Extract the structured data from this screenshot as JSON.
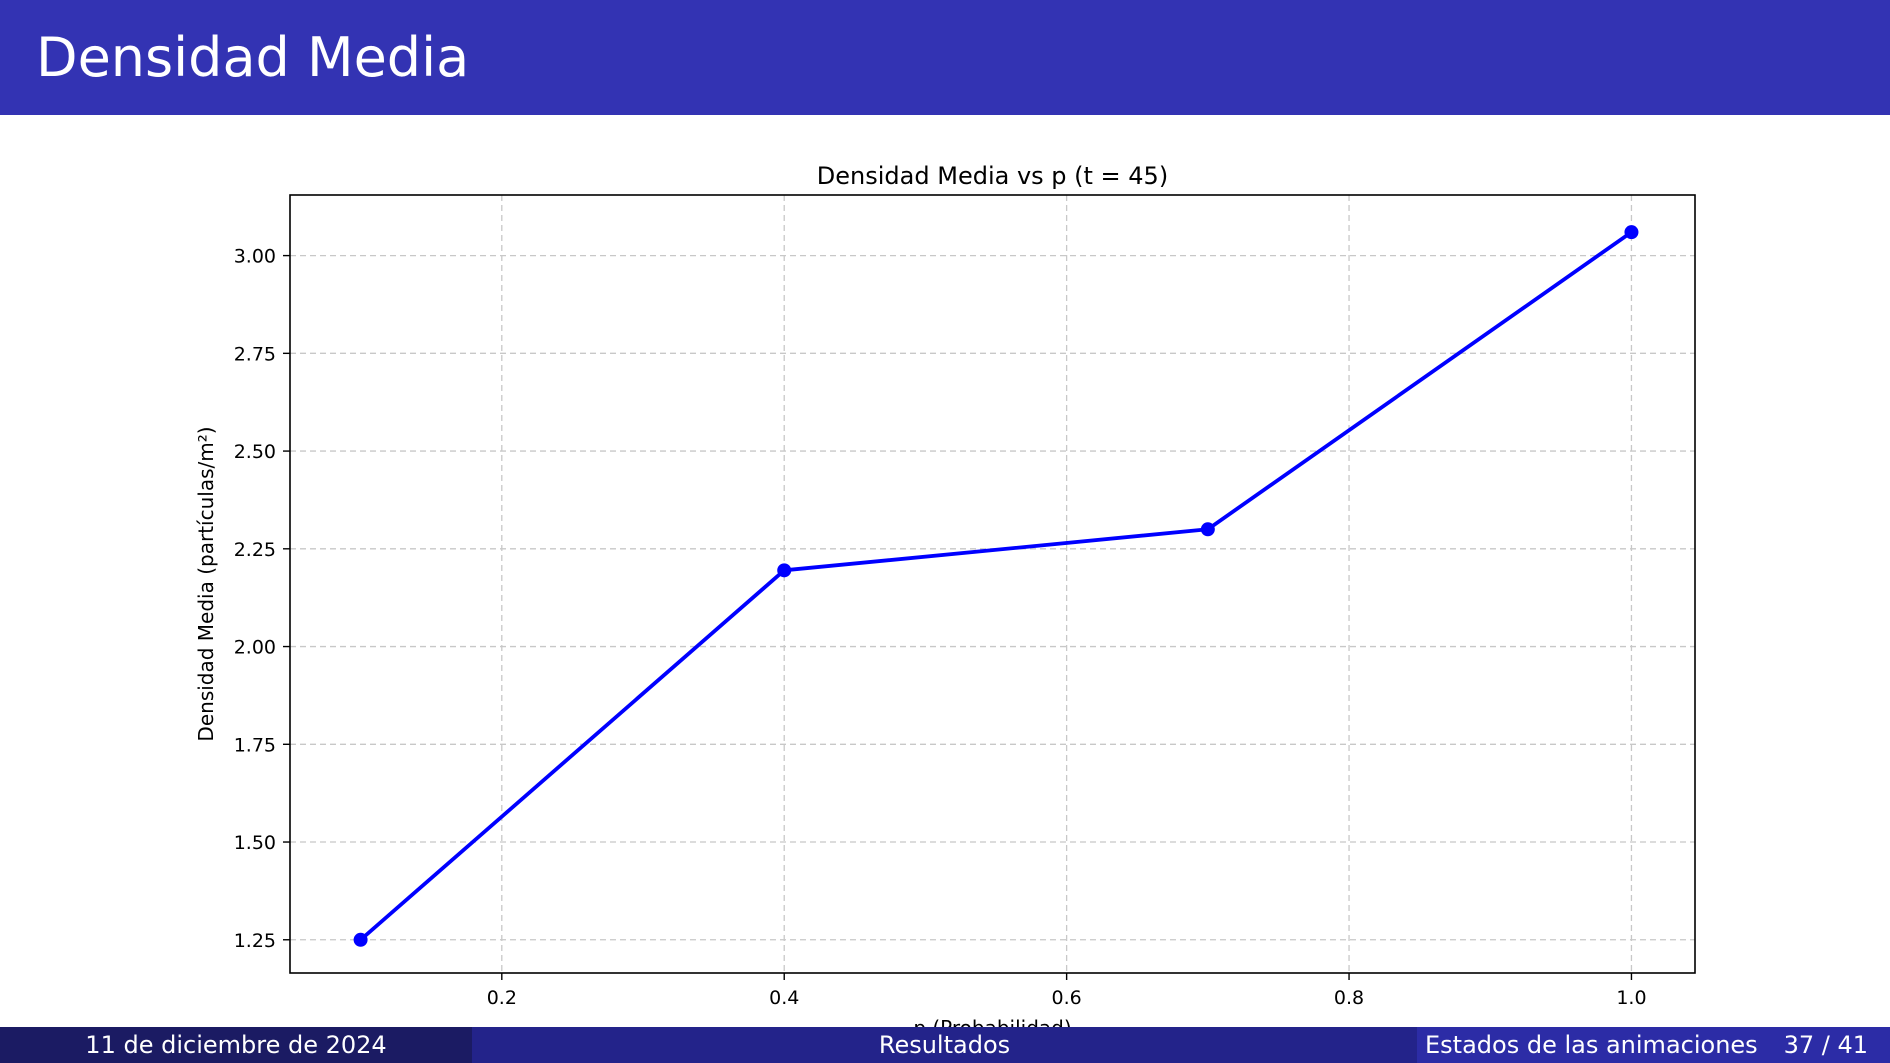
{
  "slide": {
    "title": "Densidad Media"
  },
  "footer": {
    "date": "11 de diciembre de 2024",
    "section": "Resultados",
    "subsection": "Estados de las animaciones",
    "page": "37 / 41"
  },
  "colors": {
    "header_bg": "#3333b3",
    "line": "#0000ff",
    "grid": "#c8c8c8"
  },
  "chart_data": {
    "type": "line",
    "title": "Densidad Media vs p (t = 45)",
    "xlabel": "p (Probabilidad)",
    "ylabel": "Densidad Media (partículas/m²)",
    "x": [
      0.1,
      0.4,
      0.7,
      1.0
    ],
    "series": [
      {
        "values": [
          1.25,
          2.195,
          2.3,
          3.06
        ]
      }
    ],
    "xlim": [
      0.05,
      1.045
    ],
    "ylim": [
      1.165,
      3.155
    ],
    "xticks": [
      "0.2",
      "0.4",
      "0.6",
      "0.8",
      "1.0"
    ],
    "yticks": [
      "1.25",
      "1.50",
      "1.75",
      "2.00",
      "2.25",
      "2.50",
      "2.75",
      "3.00"
    ],
    "grid": true,
    "marker": "circle"
  }
}
